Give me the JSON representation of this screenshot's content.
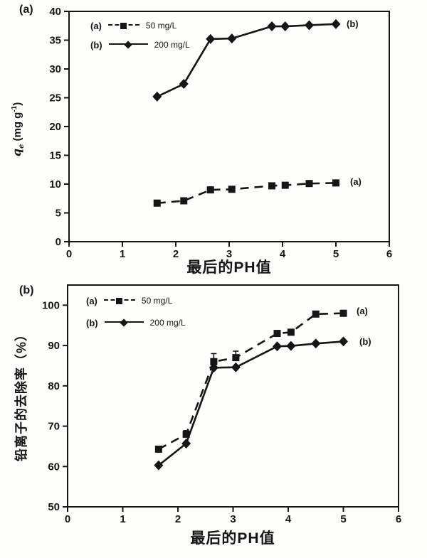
{
  "page": {
    "background": "#fdfdfc",
    "ink_color": "#161616"
  },
  "chart_data": [
    {
      "type": "line",
      "panel_label": "(a)",
      "color": "#161616",
      "xlabel": "最后的PH值",
      "ylabel_parts": {
        "sym": "q",
        "sub": "e",
        "units": " (mg g",
        "sup": "-1",
        "close": ")"
      },
      "xlim": [
        0,
        6
      ],
      "ylim": [
        0,
        40
      ],
      "x_ticks": [
        0,
        1,
        2,
        3,
        4,
        5,
        6
      ],
      "y_ticks": [
        0,
        5,
        10,
        15,
        20,
        25,
        30,
        35,
        40
      ],
      "grid": false,
      "legend_position": "upper-left-inside",
      "legend": [
        {
          "key": "(a)",
          "label": "50 mg/L",
          "marker": "square",
          "line": "dashed"
        },
        {
          "key": "(b)",
          "label": "200 mg/L",
          "marker": "diamond",
          "line": "solid"
        }
      ],
      "series": [
        {
          "name": "50 mg/L",
          "marker": "square",
          "line": "dashed",
          "end_label": "(a)",
          "x": [
            1.65,
            2.15,
            2.65,
            3.05,
            3.8,
            4.05,
            4.5,
            5.0
          ],
          "y": [
            6.7,
            7.1,
            9.0,
            9.1,
            9.7,
            9.8,
            10.1,
            10.2
          ]
        },
        {
          "name": "200 mg/L",
          "marker": "diamond",
          "line": "solid",
          "end_label": "(b)",
          "x": [
            1.65,
            2.15,
            2.65,
            3.05,
            3.8,
            4.05,
            4.5,
            5.0
          ],
          "y": [
            25.2,
            27.4,
            35.2,
            35.3,
            37.4,
            37.4,
            37.6,
            37.8
          ]
        }
      ]
    },
    {
      "type": "line",
      "panel_label": "(b)",
      "color": "#161616",
      "xlabel": "最后的PH值",
      "ylabel": "铅离子的去除率（%）",
      "xlim": [
        0,
        6
      ],
      "ylim": [
        50,
        105
      ],
      "x_ticks": [
        0,
        1,
        2,
        3,
        4,
        5,
        6
      ],
      "y_ticks": [
        50,
        60,
        70,
        80,
        90,
        100
      ],
      "grid": false,
      "legend_position": "upper-left-inside",
      "legend": [
        {
          "key": "(a)",
          "label": "50 mg/L",
          "marker": "square",
          "line": "dashed"
        },
        {
          "key": "(b)",
          "label": "200 mg/L",
          "marker": "diamond",
          "line": "solid"
        }
      ],
      "series": [
        {
          "name": "50 mg/L",
          "marker": "square",
          "line": "dashed",
          "end_label": "(a)",
          "x": [
            1.65,
            2.15,
            2.65,
            3.05,
            3.8,
            4.05,
            4.5,
            5.0
          ],
          "y": [
            64.3,
            68.0,
            86.0,
            87.0,
            93.0,
            93.3,
            97.8,
            98.0
          ],
          "yerr": [
            0,
            0.9,
            2.0,
            1.6,
            0,
            0,
            0,
            0
          ]
        },
        {
          "name": "200 mg/L",
          "marker": "diamond",
          "line": "solid",
          "end_label": "(b)",
          "x": [
            1.65,
            2.15,
            2.65,
            3.05,
            3.8,
            4.05,
            4.5,
            5.0
          ],
          "y": [
            60.3,
            65.7,
            84.5,
            84.6,
            89.8,
            89.9,
            90.5,
            91.0
          ]
        }
      ]
    }
  ]
}
